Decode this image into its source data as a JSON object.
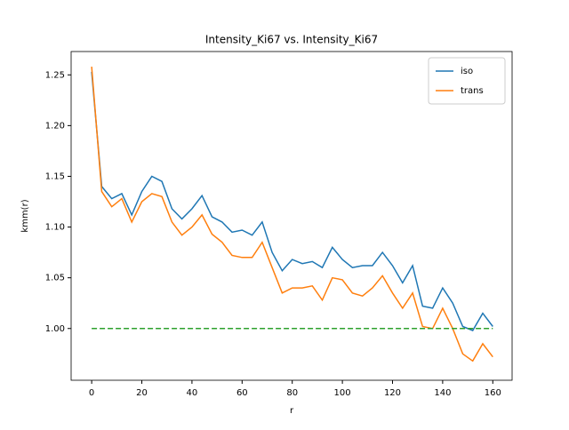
{
  "chart_data": {
    "type": "line",
    "title": "Intensity_Ki67 vs. Intensity_Ki67",
    "xlabel": "r",
    "ylabel": "kmm(r)",
    "x": [
      0,
      4,
      8,
      12,
      16,
      20,
      24,
      28,
      32,
      36,
      40,
      44,
      48,
      52,
      56,
      60,
      64,
      68,
      72,
      76,
      80,
      84,
      88,
      92,
      96,
      100,
      104,
      108,
      112,
      116,
      120,
      124,
      128,
      132,
      136,
      140,
      144,
      148,
      152,
      156,
      160
    ],
    "series": [
      {
        "name": "iso",
        "color": "#1f77b4",
        "values": [
          1.253,
          1.14,
          1.128,
          1.133,
          1.112,
          1.135,
          1.15,
          1.145,
          1.118,
          1.108,
          1.118,
          1.131,
          1.11,
          1.105,
          1.095,
          1.097,
          1.092,
          1.105,
          1.075,
          1.057,
          1.068,
          1.064,
          1.066,
          1.06,
          1.08,
          1.068,
          1.06,
          1.062,
          1.062,
          1.075,
          1.062,
          1.045,
          1.062,
          1.022,
          1.02,
          1.04,
          1.025,
          1.002,
          0.998,
          1.015,
          1.002
        ]
      },
      {
        "name": "trans",
        "color": "#ff7f0e",
        "values": [
          1.258,
          1.135,
          1.12,
          1.128,
          1.105,
          1.125,
          1.133,
          1.13,
          1.105,
          1.092,
          1.1,
          1.112,
          1.093,
          1.085,
          1.072,
          1.07,
          1.07,
          1.085,
          1.06,
          1.035,
          1.04,
          1.04,
          1.042,
          1.028,
          1.05,
          1.048,
          1.035,
          1.032,
          1.04,
          1.052,
          1.035,
          1.02,
          1.035,
          1.002,
          1.0,
          1.02,
          1.0,
          0.975,
          0.968,
          0.985,
          0.972
        ]
      },
      {
        "color": "#2ca02c",
        "dashed": true,
        "x": [
          0,
          160
        ],
        "values": [
          1,
          1
        ]
      }
    ],
    "xlim": [
      -8.2,
      167.7
    ],
    "ylim": [
      0.949,
      1.273
    ],
    "xticks": [
      0,
      20,
      40,
      60,
      80,
      100,
      120,
      140,
      160
    ],
    "yticks": [
      {
        "value": 1.0,
        "label": "1.00"
      },
      {
        "value": 1.05,
        "label": "1.05"
      },
      {
        "value": 1.1,
        "label": "1.10"
      },
      {
        "value": 1.15,
        "label": "1.15"
      },
      {
        "value": 1.2,
        "label": "1.20"
      },
      {
        "value": 1.25,
        "label": "1.25"
      }
    ],
    "legend": "upper right"
  }
}
